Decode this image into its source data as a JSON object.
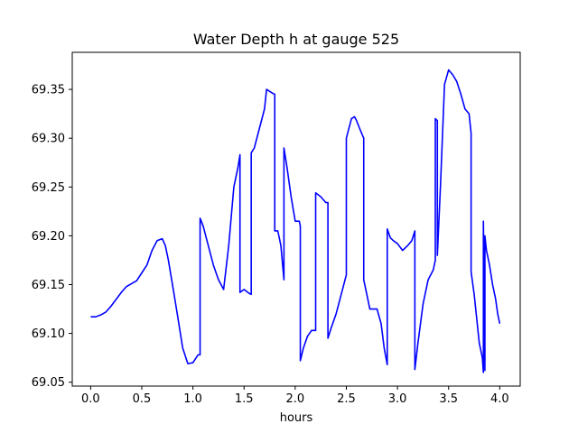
{
  "chart_data": {
    "type": "line",
    "title": "Water Depth h at gauge 525",
    "xlabel": "hours",
    "ylabel": "",
    "xlim": [
      -0.18,
      4.2
    ],
    "ylim": [
      69.046,
      69.388
    ],
    "xticks": [
      0.0,
      0.5,
      1.0,
      1.5,
      2.0,
      2.5,
      3.0,
      3.5,
      4.0
    ],
    "xtick_labels": [
      "0.0",
      "0.5",
      "1.0",
      "1.5",
      "2.0",
      "2.5",
      "3.0",
      "3.5",
      "4.0"
    ],
    "yticks": [
      69.05,
      69.1,
      69.15,
      69.2,
      69.25,
      69.3,
      69.35
    ],
    "ytick_labels": [
      "69.05",
      "69.10",
      "69.15",
      "69.20",
      "69.25",
      "69.30",
      "69.35"
    ],
    "grid": false,
    "series": [
      {
        "color": "#0000ff",
        "x": [
          0.0,
          0.05,
          0.1,
          0.15,
          0.2,
          0.25,
          0.3,
          0.35,
          0.4,
          0.45,
          0.5,
          0.55,
          0.6,
          0.65,
          0.7,
          0.73,
          0.76,
          0.8,
          0.85,
          0.9,
          0.95,
          1.0,
          1.05,
          1.07,
          1.07,
          1.1,
          1.15,
          1.2,
          1.25,
          1.3,
          1.35,
          1.4,
          1.44,
          1.46,
          1.46,
          1.5,
          1.55,
          1.57,
          1.57,
          1.6,
          1.65,
          1.7,
          1.72,
          1.75,
          1.78,
          1.8,
          1.8,
          1.83,
          1.86,
          1.89,
          1.89,
          1.92,
          1.96,
          2.0,
          2.04,
          2.05,
          2.05,
          2.08,
          2.12,
          2.16,
          2.2,
          2.2,
          2.25,
          2.3,
          2.32,
          2.32,
          2.35,
          2.4,
          2.45,
          2.5,
          2.5,
          2.55,
          2.58,
          2.6,
          2.63,
          2.67,
          2.67,
          2.7,
          2.73,
          2.76,
          2.8,
          2.84,
          2.87,
          2.9,
          2.9,
          2.93,
          2.96,
          3.0,
          3.05,
          3.1,
          3.14,
          3.17,
          3.17,
          3.2,
          3.25,
          3.3,
          3.35,
          3.37,
          3.37,
          3.39,
          3.39,
          3.42,
          3.46,
          3.5,
          3.54,
          3.58,
          3.62,
          3.66,
          3.7,
          3.72,
          3.72,
          3.75,
          3.78,
          3.8,
          3.83,
          3.84,
          3.84,
          3.85,
          3.855,
          3.855,
          3.86,
          3.87,
          3.9,
          3.93,
          3.96,
          3.98,
          4.0
        ],
        "y": [
          69.117,
          69.117,
          69.119,
          69.122,
          69.128,
          69.135,
          69.142,
          69.148,
          69.151,
          69.154,
          69.162,
          69.17,
          69.185,
          69.195,
          69.197,
          69.19,
          69.175,
          69.15,
          69.118,
          69.085,
          69.069,
          69.07,
          69.078,
          69.078,
          69.218,
          69.21,
          69.19,
          69.17,
          69.155,
          69.145,
          69.19,
          69.25,
          69.27,
          69.283,
          69.142,
          69.145,
          69.141,
          69.14,
          69.285,
          69.29,
          69.31,
          69.33,
          69.35,
          69.348,
          69.346,
          69.345,
          69.205,
          69.205,
          69.19,
          69.155,
          69.29,
          69.27,
          69.24,
          69.215,
          69.215,
          69.21,
          69.072,
          69.085,
          69.097,
          69.103,
          69.103,
          69.244,
          69.24,
          69.234,
          69.234,
          69.095,
          69.105,
          69.12,
          69.14,
          69.16,
          69.3,
          69.32,
          69.322,
          69.318,
          69.31,
          69.3,
          69.155,
          69.14,
          69.125,
          69.125,
          69.125,
          69.11,
          69.085,
          69.068,
          69.207,
          69.198,
          69.195,
          69.192,
          69.185,
          69.19,
          69.195,
          69.205,
          69.063,
          69.09,
          69.13,
          69.155,
          69.165,
          69.175,
          69.32,
          69.318,
          69.18,
          69.25,
          69.355,
          69.37,
          69.365,
          69.358,
          69.345,
          69.33,
          69.325,
          69.305,
          69.163,
          69.14,
          69.11,
          69.09,
          69.075,
          69.06,
          69.215,
          69.14,
          69.062,
          69.2,
          69.195,
          69.185,
          69.17,
          69.15,
          69.135,
          69.12,
          69.11
        ]
      }
    ]
  }
}
